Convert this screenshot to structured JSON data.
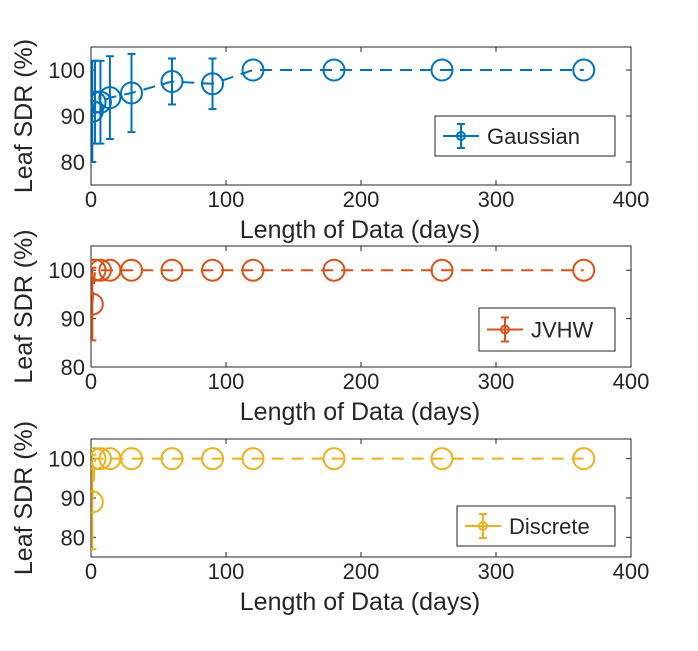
{
  "chart_data": [
    {
      "type": "line",
      "error_bars": true,
      "series_name": "Gaussian",
      "color": "#0072BD",
      "xlabel": "Length of Data (days)",
      "ylabel": "Leaf SDR (%)",
      "xlim": [
        0,
        400
      ],
      "ylim": [
        75,
        105
      ],
      "xticks": [
        0,
        100,
        200,
        300,
        400
      ],
      "yticks": [
        80,
        90,
        100
      ],
      "legend_location": "bottom-right",
      "x": [
        1,
        3,
        7,
        14,
        30,
        60,
        90,
        120,
        180,
        260,
        365
      ],
      "y": [
        91,
        93,
        93,
        94,
        95,
        97.5,
        97,
        100,
        100,
        100,
        100
      ],
      "err": [
        11,
        9,
        9,
        9,
        8.5,
        5,
        5.5,
        0,
        0,
        0,
        0
      ]
    },
    {
      "type": "line",
      "error_bars": true,
      "series_name": "JVHW",
      "color": "#D95319",
      "xlabel": "Length of Data (days)",
      "ylabel": "Leaf SDR (%)",
      "xlim": [
        0,
        400
      ],
      "ylim": [
        80,
        105
      ],
      "xticks": [
        0,
        100,
        200,
        300,
        400
      ],
      "yticks": [
        80,
        90,
        100
      ],
      "legend_location": "bottom-right",
      "x": [
        1,
        3,
        7,
        14,
        30,
        60,
        90,
        120,
        180,
        260,
        365
      ],
      "y": [
        93,
        100,
        100,
        100,
        100,
        100,
        100,
        100,
        100,
        100,
        100
      ],
      "err": [
        7.5,
        0,
        0,
        0,
        0,
        0,
        0,
        0,
        0,
        0,
        0
      ]
    },
    {
      "type": "line",
      "error_bars": true,
      "series_name": "Discrete",
      "color": "#EDB120",
      "xlabel": "Length of Data (days)",
      "ylabel": "Leaf SDR (%)",
      "xlim": [
        0,
        400
      ],
      "ylim": [
        75,
        105
      ],
      "xticks": [
        0,
        100,
        200,
        300,
        400
      ],
      "yticks": [
        80,
        90,
        100
      ],
      "legend_location": "bottom-right",
      "x": [
        1,
        3,
        7,
        14,
        30,
        60,
        90,
        120,
        180,
        260,
        365
      ],
      "y": [
        89,
        100,
        100,
        100,
        100,
        100,
        100,
        100,
        100,
        100,
        100
      ],
      "err": [
        12,
        0,
        0,
        0,
        0,
        0,
        0,
        0,
        0,
        0,
        0
      ]
    }
  ]
}
